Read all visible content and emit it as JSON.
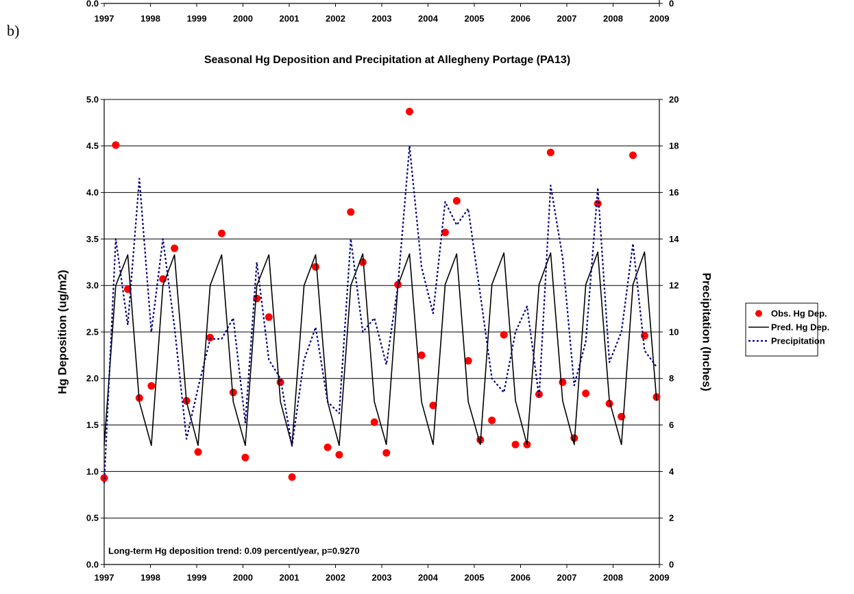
{
  "panel_label": "b)",
  "chart_data": [
    {
      "type": "line",
      "xlim": [
        1997,
        2009
      ],
      "xticks": [
        1997,
        1998,
        1999,
        2000,
        2001,
        2002,
        2003,
        2004,
        2005,
        2006,
        2007,
        2008,
        2009
      ],
      "yticks": [
        {
          "value": 0,
          "label": "0.0"
        }
      ],
      "y2ticks": [
        0
      ]
    },
    {
      "type": "line",
      "title": "Seasonal Hg Deposition and Precipitation at Allegheny Portage (PA13)",
      "y_label": "Hg Deposition (ug/m2)",
      "y2_label": "Precipitation (Inches)",
      "annotation": "Long-term Hg deposition trend:  0.09 percent/year,  p=0.9270",
      "xlim": [
        1997,
        2009
      ],
      "xticks": [
        1997,
        1998,
        1999,
        2000,
        2001,
        2002,
        2003,
        2004,
        2005,
        2006,
        2007,
        2008,
        2009
      ],
      "ylim": [
        0,
        5
      ],
      "yticks": [
        {
          "value": 0,
          "label": "0.0"
        },
        0.5,
        {
          "value": 1,
          "label": "1.0"
        },
        1.5,
        {
          "value": 2,
          "label": "2.0"
        },
        2.5,
        {
          "value": 3,
          "label": "3.0"
        },
        3.5,
        {
          "value": 4,
          "label": "4.0"
        },
        4.5,
        {
          "value": 5,
          "label": "5.0"
        }
      ],
      "y2lim": [
        0,
        20
      ],
      "y2ticks": [
        0,
        2,
        4,
        6,
        8,
        10,
        12,
        14,
        16,
        18,
        20
      ],
      "grid": true,
      "legend": "right",
      "x": [
        1997.0,
        1997.25,
        1997.51,
        1997.76,
        1998.02,
        1998.27,
        1998.52,
        1998.78,
        1999.03,
        1999.29,
        1999.54,
        1999.79,
        2000.05,
        2000.3,
        2000.56,
        2000.81,
        2001.06,
        2001.32,
        2001.57,
        2001.83,
        2002.08,
        2002.33,
        2002.59,
        2002.84,
        2003.1,
        2003.35,
        2003.6,
        2003.86,
        2004.11,
        2004.37,
        2004.62,
        2004.87,
        2005.13,
        2005.38,
        2005.64,
        2005.89,
        2006.14,
        2006.4,
        2006.65,
        2006.91,
        2007.16,
        2007.41,
        2007.67,
        2007.92,
        2008.18,
        2008.43,
        2008.68,
        2008.94
      ],
      "series": [
        {
          "name": "Obs. Hg Dep.",
          "type": "scatter",
          "color": "#ff0000",
          "values": [
            0.93,
            4.51,
            2.96,
            1.79,
            1.92,
            3.07,
            3.4,
            1.76,
            1.21,
            2.44,
            3.56,
            1.85,
            1.15,
            2.86,
            2.66,
            1.96,
            0.94,
            null,
            3.2,
            1.26,
            1.18,
            3.79,
            3.25,
            1.53,
            1.2,
            3.01,
            4.87,
            2.25,
            1.71,
            3.57,
            3.91,
            2.19,
            1.34,
            1.55,
            2.47,
            1.29,
            1.29,
            1.83,
            4.43,
            1.96,
            1.36,
            1.84,
            3.88,
            1.73,
            1.59,
            4.4,
            2.46,
            1.8
          ]
        },
        {
          "name": "Pred. Hg Dep.",
          "type": "line",
          "color": "#000000",
          "values": [
            1.28,
            3.0,
            3.33,
            1.75,
            1.28,
            3.0,
            3.33,
            1.75,
            1.28,
            3.0,
            3.33,
            1.75,
            1.28,
            3.0,
            3.33,
            1.75,
            1.28,
            3.0,
            3.33,
            1.75,
            1.28,
            3.0,
            3.34,
            1.75,
            1.29,
            3.0,
            3.34,
            1.75,
            1.29,
            3.01,
            3.34,
            1.75,
            1.29,
            3.01,
            3.35,
            1.76,
            1.29,
            3.01,
            3.35,
            1.76,
            1.29,
            3.01,
            3.36,
            1.76,
            1.29,
            3.01,
            3.36,
            1.76
          ]
        },
        {
          "name": "Precipitation",
          "type": "line",
          "dashed": true,
          "axis": "y2",
          "color": "#000080",
          "values": [
            3.5,
            14.0,
            10.3,
            16.6,
            10.0,
            14.0,
            10.2,
            5.4,
            7.6,
            9.7,
            9.7,
            10.6,
            6.1,
            13.0,
            8.8,
            8.0,
            5.1,
            8.8,
            10.2,
            7.0,
            6.5,
            14.0,
            10.0,
            10.6,
            8.6,
            12.0,
            18.0,
            12.8,
            10.8,
            15.6,
            14.6,
            15.3,
            11.6,
            8.0,
            7.4,
            10.0,
            11.1,
            7.2,
            16.3,
            13.2,
            7.7,
            9.6,
            16.2,
            8.7,
            10.0,
            13.8,
            9.2,
            8.5
          ]
        }
      ]
    }
  ]
}
